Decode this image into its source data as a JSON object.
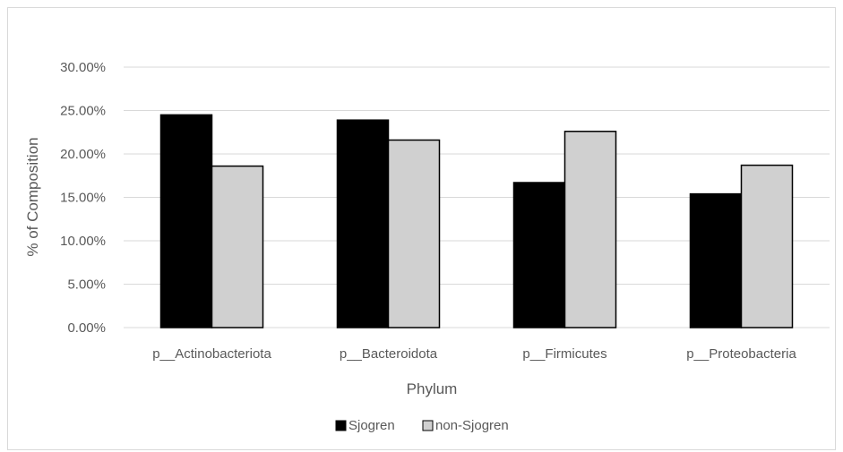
{
  "chart_data": {
    "type": "bar",
    "title": "",
    "xlabel": "Phylum",
    "ylabel": "% of Composition",
    "categories": [
      "p__Actinobacteriota",
      "p__Bacteroidota",
      "p__Firmicutes",
      "p__Proteobacteria"
    ],
    "series": [
      {
        "name": "Sjogren",
        "values": [
          24.5,
          23.9,
          16.7,
          15.4
        ]
      },
      {
        "name": "non-Sjogren",
        "values": [
          18.6,
          21.6,
          22.6,
          18.7
        ]
      }
    ],
    "ylim": [
      0,
      30
    ],
    "yticks": [
      "0.00%",
      "5.00%",
      "10.00%",
      "15.00%",
      "20.00%",
      "25.00%",
      "30.00%"
    ],
    "grid": true,
    "legend_position": "bottom",
    "colors": {
      "Sjogren": "#000000",
      "non-Sjogren": "#d0d0d0",
      "grid": "#d9d9d9",
      "text": "#595959"
    }
  }
}
